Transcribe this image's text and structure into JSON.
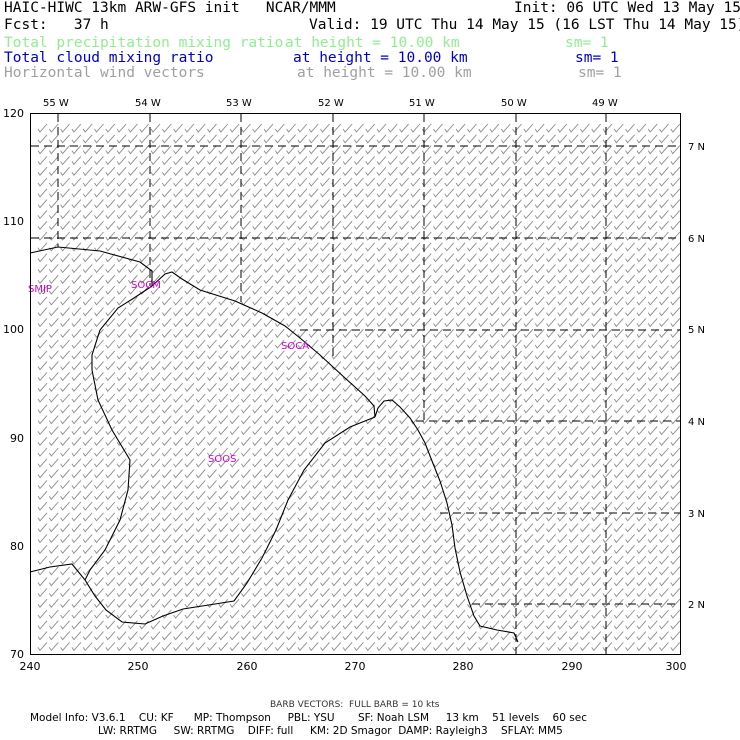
{
  "header": {
    "line1_left": "HAIC-HIWC 13km ARW-GFS init   NCAR/MMM",
    "line1_right": "Init: 06 UTC Wed 13 May 15",
    "line2_left": "Fcst:   37 h",
    "line2_right": "Valid: 19 UTC Thu 14 May 15 (16 LST Thu 14 May 15)",
    "field1_name": "Total precipitation mixing ratio",
    "field1_level": "at height = 10.00 km",
    "field1_sm": "sm= 1",
    "field2_name": "Total cloud mixing ratio",
    "field2_level": "at height = 10.00 km",
    "field2_sm": "sm= 1",
    "field3_name": "Horizontal wind vectors",
    "field3_level": "at height = 10.00 km",
    "field3_sm": "sm= 1"
  },
  "map": {
    "x_ticks": [
      "240",
      "250",
      "260",
      "270",
      "280",
      "290",
      "300"
    ],
    "y_ticks": [
      "70",
      "80",
      "90",
      "100",
      "110",
      "120"
    ],
    "lon_labels": [
      "55 W",
      "54 W",
      "53 W",
      "52 W",
      "51 W",
      "50 W",
      "49 W"
    ],
    "lat_labels": [
      "7 N",
      "6 N",
      "5 N",
      "4 N",
      "3 N",
      "2 N"
    ],
    "stations": [
      "SMJP",
      "SOCM",
      "SOCA",
      "SOOS"
    ],
    "colors": {
      "coastline": "#000000",
      "barbs": "#8c8c8c",
      "stations": "#d000d0",
      "field1": "#90ee90",
      "field2": "#0000cd",
      "field3": "#a0a0a0"
    }
  },
  "footer": {
    "barb_note": "BARB VECTORS:  FULL BARB = 10 kts",
    "model_line1": "Model Info: V3.6.1    CU: KF      MP: Thompson     PBL: YSU       SF: Noah LSM     13 km    51 levels    60 sec",
    "model_line2": "LW: RRTMG     SW: RRTMG    DIFF: full     KM: 2D Smagor  DAMP: Rayleigh3    SFLAY: MM5"
  }
}
